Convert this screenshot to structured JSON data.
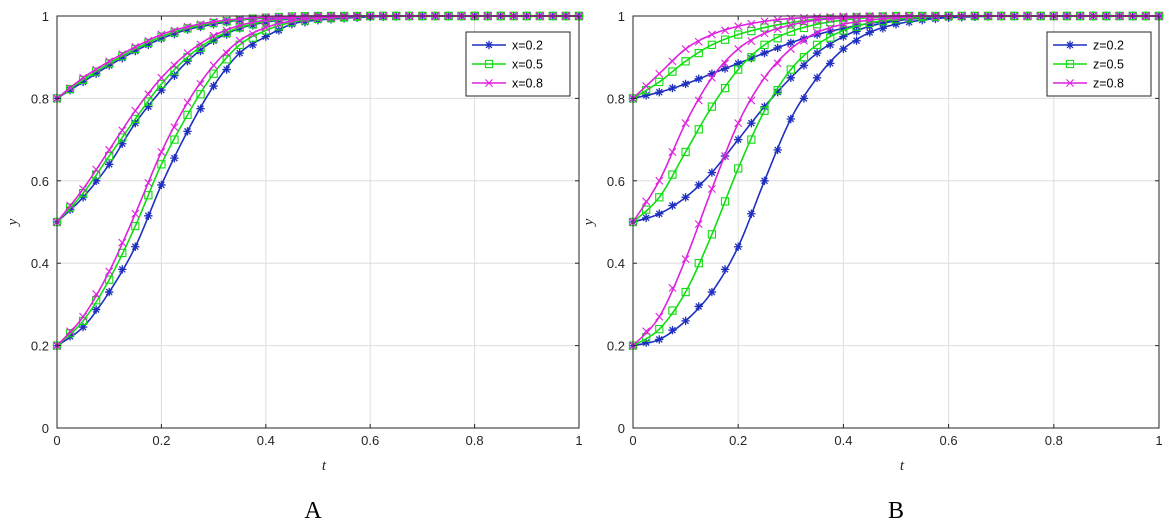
{
  "colors": {
    "blue": "#1f2fbf",
    "green": "#11dd11",
    "magenta": "#dd22dd"
  },
  "chart_data": [
    {
      "type": "line",
      "panel_label": "A",
      "xlabel": "t",
      "ylabel": "y",
      "xlim": [
        0,
        1
      ],
      "ylim": [
        0,
        1
      ],
      "xticks": [
        "0",
        "0.2",
        "0.4",
        "0.6",
        "0.8",
        "1"
      ],
      "yticks": [
        "0",
        "0.2",
        "0.4",
        "0.6",
        "0.8",
        "1"
      ],
      "grid": true,
      "legend_position": "top-right",
      "series": [
        {
          "name": "x=0.2",
          "color": "blue",
          "marker": "star",
          "curves": [
            {
              "y0": 0.2,
              "x": [
                0,
                0.05,
                0.1,
                0.15,
                0.2,
                0.25,
                0.3,
                0.35,
                0.4,
                0.45,
                0.5,
                0.6,
                0.7,
                0.8,
                0.9,
                1.0
              ],
              "y": [
                0.2,
                0.245,
                0.33,
                0.44,
                0.59,
                0.72,
                0.83,
                0.91,
                0.95,
                0.98,
                0.99,
                0.998,
                1,
                1,
                1,
                1
              ]
            },
            {
              "y0": 0.5,
              "x": [
                0,
                0.05,
                0.1,
                0.15,
                0.2,
                0.25,
                0.3,
                0.35,
                0.4,
                0.45,
                0.5,
                0.6,
                0.7,
                0.8,
                0.9,
                1.0
              ],
              "y": [
                0.5,
                0.56,
                0.64,
                0.74,
                0.82,
                0.89,
                0.94,
                0.97,
                0.985,
                0.993,
                0.997,
                1,
                1,
                1,
                1,
                1
              ]
            },
            {
              "y0": 0.8,
              "x": [
                0,
                0.05,
                0.1,
                0.15,
                0.2,
                0.25,
                0.3,
                0.35,
                0.4,
                0.45,
                0.5,
                0.6,
                0.7,
                0.8,
                0.9,
                1.0
              ],
              "y": [
                0.8,
                0.84,
                0.88,
                0.915,
                0.945,
                0.967,
                0.98,
                0.99,
                0.995,
                0.998,
                1,
                1,
                1,
                1,
                1,
                1
              ]
            }
          ]
        },
        {
          "name": "x=0.5",
          "color": "green",
          "marker": "square",
          "curves": [
            {
              "y0": 0.2,
              "x": [
                0,
                0.05,
                0.1,
                0.15,
                0.2,
                0.25,
                0.3,
                0.35,
                0.4,
                0.45,
                0.5,
                0.6,
                0.7,
                0.8,
                0.9,
                1.0
              ],
              "y": [
                0.2,
                0.26,
                0.36,
                0.49,
                0.64,
                0.76,
                0.86,
                0.93,
                0.965,
                0.985,
                0.993,
                1,
                1,
                1,
                1,
                1
              ]
            },
            {
              "y0": 0.5,
              "x": [
                0,
                0.05,
                0.1,
                0.15,
                0.2,
                0.25,
                0.3,
                0.35,
                0.4,
                0.45,
                0.5,
                0.6,
                0.7,
                0.8,
                0.9,
                1.0
              ],
              "y": [
                0.5,
                0.57,
                0.66,
                0.75,
                0.835,
                0.9,
                0.945,
                0.972,
                0.987,
                0.995,
                0.998,
                1,
                1,
                1,
                1,
                1
              ]
            },
            {
              "y0": 0.8,
              "x": [
                0,
                0.05,
                0.1,
                0.15,
                0.2,
                0.25,
                0.3,
                0.35,
                0.4,
                0.45,
                0.5,
                0.6,
                0.7,
                0.8,
                0.9,
                1.0
              ],
              "y": [
                0.8,
                0.845,
                0.885,
                0.92,
                0.95,
                0.97,
                0.983,
                0.991,
                0.996,
                0.999,
                1,
                1,
                1,
                1,
                1,
                1
              ]
            }
          ]
        },
        {
          "name": "x=0.8",
          "color": "magenta",
          "marker": "x",
          "curves": [
            {
              "y0": 0.2,
              "x": [
                0,
                0.05,
                0.1,
                0.15,
                0.2,
                0.25,
                0.3,
                0.35,
                0.4,
                0.45,
                0.5,
                0.6,
                0.7,
                0.8,
                0.9,
                1.0
              ],
              "y": [
                0.2,
                0.27,
                0.38,
                0.52,
                0.67,
                0.79,
                0.88,
                0.94,
                0.972,
                0.988,
                0.995,
                1,
                1,
                1,
                1,
                1
              ]
            },
            {
              "y0": 0.5,
              "x": [
                0,
                0.05,
                0.1,
                0.15,
                0.2,
                0.25,
                0.3,
                0.35,
                0.4,
                0.45,
                0.5,
                0.6,
                0.7,
                0.8,
                0.9,
                1.0
              ],
              "y": [
                0.5,
                0.58,
                0.675,
                0.77,
                0.85,
                0.91,
                0.952,
                0.977,
                0.99,
                0.996,
                0.999,
                1,
                1,
                1,
                1,
                1
              ]
            },
            {
              "y0": 0.8,
              "x": [
                0,
                0.05,
                0.1,
                0.15,
                0.2,
                0.25,
                0.3,
                0.35,
                0.4,
                0.45,
                0.5,
                0.6,
                0.7,
                0.8,
                0.9,
                1.0
              ],
              "y": [
                0.8,
                0.85,
                0.89,
                0.925,
                0.955,
                0.974,
                0.986,
                0.993,
                0.997,
                0.999,
                1,
                1,
                1,
                1,
                1,
                1
              ]
            }
          ]
        }
      ]
    },
    {
      "type": "line",
      "panel_label": "B",
      "xlabel": "t",
      "ylabel": "y",
      "xlim": [
        0,
        1
      ],
      "ylim": [
        0,
        1
      ],
      "xticks": [
        "0",
        "0.2",
        "0.4",
        "0.6",
        "0.8",
        "1"
      ],
      "yticks": [
        "0",
        "0.2",
        "0.4",
        "0.6",
        "0.8",
        "1"
      ],
      "grid": true,
      "legend_position": "top-right",
      "series": [
        {
          "name": "z=0.2",
          "color": "blue",
          "marker": "star",
          "curves": [
            {
              "y0": 0.2,
              "x": [
                0,
                0.05,
                0.1,
                0.15,
                0.2,
                0.25,
                0.3,
                0.35,
                0.4,
                0.45,
                0.5,
                0.55,
                0.6,
                0.7,
                0.8,
                0.9,
                1.0
              ],
              "y": [
                0.2,
                0.215,
                0.26,
                0.33,
                0.44,
                0.6,
                0.75,
                0.85,
                0.92,
                0.96,
                0.98,
                0.99,
                0.996,
                1,
                1,
                1,
                1
              ]
            },
            {
              "y0": 0.5,
              "x": [
                0,
                0.05,
                0.1,
                0.15,
                0.2,
                0.25,
                0.3,
                0.35,
                0.4,
                0.45,
                0.5,
                0.55,
                0.6,
                0.7,
                0.8,
                0.9,
                1.0
              ],
              "y": [
                0.5,
                0.52,
                0.56,
                0.62,
                0.7,
                0.78,
                0.85,
                0.91,
                0.95,
                0.975,
                0.988,
                0.995,
                0.998,
                1,
                1,
                1,
                1
              ]
            },
            {
              "y0": 0.8,
              "x": [
                0,
                0.05,
                0.1,
                0.15,
                0.2,
                0.25,
                0.3,
                0.35,
                0.4,
                0.45,
                0.5,
                0.55,
                0.6,
                0.7,
                0.8,
                0.9,
                1.0
              ],
              "y": [
                0.8,
                0.815,
                0.835,
                0.86,
                0.885,
                0.91,
                0.935,
                0.955,
                0.97,
                0.982,
                0.99,
                0.995,
                0.998,
                1,
                1,
                1,
                1
              ]
            }
          ]
        },
        {
          "name": "z=0.5",
          "color": "green",
          "marker": "square",
          "curves": [
            {
              "y0": 0.2,
              "x": [
                0,
                0.05,
                0.1,
                0.15,
                0.2,
                0.25,
                0.3,
                0.35,
                0.4,
                0.45,
                0.5,
                0.55,
                0.6,
                0.7,
                0.8,
                0.9,
                1.0
              ],
              "y": [
                0.2,
                0.24,
                0.33,
                0.47,
                0.63,
                0.77,
                0.87,
                0.93,
                0.965,
                0.983,
                0.992,
                0.997,
                1,
                1,
                1,
                1,
                1
              ]
            },
            {
              "y0": 0.5,
              "x": [
                0,
                0.05,
                0.1,
                0.15,
                0.2,
                0.25,
                0.3,
                0.35,
                0.4,
                0.45,
                0.5,
                0.55,
                0.6,
                0.7,
                0.8,
                0.9,
                1.0
              ],
              "y": [
                0.5,
                0.56,
                0.67,
                0.78,
                0.87,
                0.93,
                0.962,
                0.98,
                0.99,
                0.996,
                0.998,
                1,
                1,
                1,
                1,
                1,
                1
              ]
            },
            {
              "y0": 0.8,
              "x": [
                0,
                0.05,
                0.1,
                0.15,
                0.2,
                0.25,
                0.3,
                0.35,
                0.4,
                0.45,
                0.5,
                0.55,
                0.6,
                0.7,
                0.8,
                0.9,
                1.0
              ],
              "y": [
                0.8,
                0.84,
                0.89,
                0.93,
                0.955,
                0.972,
                0.984,
                0.992,
                0.996,
                0.998,
                1,
                1,
                1,
                1,
                1,
                1,
                1
              ]
            }
          ]
        },
        {
          "name": "z=0.8",
          "color": "magenta",
          "marker": "x",
          "curves": [
            {
              "y0": 0.2,
              "x": [
                0,
                0.05,
                0.1,
                0.15,
                0.2,
                0.25,
                0.3,
                0.35,
                0.4,
                0.45,
                0.5,
                0.55,
                0.6,
                0.7,
                0.8,
                0.9,
                1.0
              ],
              "y": [
                0.2,
                0.27,
                0.41,
                0.58,
                0.74,
                0.85,
                0.92,
                0.96,
                0.98,
                0.99,
                0.996,
                1,
                1,
                1,
                1,
                1,
                1
              ]
            },
            {
              "y0": 0.5,
              "x": [
                0,
                0.05,
                0.1,
                0.15,
                0.2,
                0.25,
                0.3,
                0.35,
                0.4,
                0.45,
                0.5,
                0.55,
                0.6,
                0.7,
                0.8,
                0.9,
                1.0
              ],
              "y": [
                0.5,
                0.6,
                0.74,
                0.85,
                0.92,
                0.958,
                0.978,
                0.99,
                0.995,
                0.998,
                1,
                1,
                1,
                1,
                1,
                1,
                1
              ]
            },
            {
              "y0": 0.8,
              "x": [
                0,
                0.05,
                0.1,
                0.15,
                0.2,
                0.25,
                0.3,
                0.35,
                0.4,
                0.45,
                0.5,
                0.55,
                0.6,
                0.7,
                0.8,
                0.9,
                1.0
              ],
              "y": [
                0.8,
                0.86,
                0.92,
                0.955,
                0.975,
                0.987,
                0.994,
                0.997,
                0.999,
                1,
                1,
                1,
                1,
                1,
                1,
                1,
                1
              ]
            }
          ]
        }
      ]
    }
  ]
}
